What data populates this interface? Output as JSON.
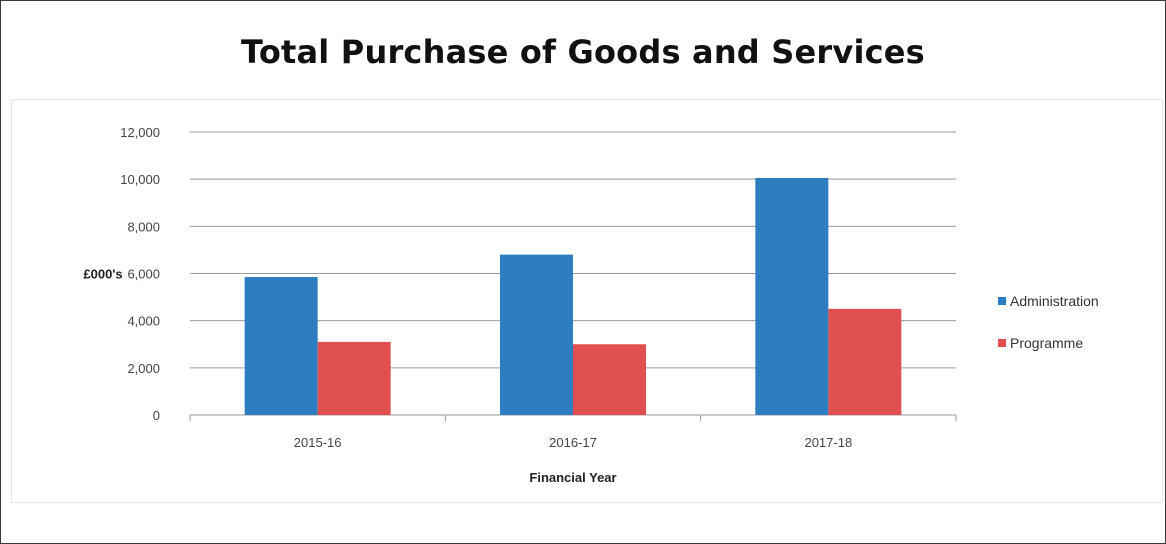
{
  "title": "Total Purchase of Goods and Services",
  "chart_data": {
    "type": "bar",
    "categories": [
      "2015-16",
      "2016-17",
      "2017-18"
    ],
    "series": [
      {
        "name": "Administration",
        "values": [
          5850,
          6800,
          10050
        ],
        "color": "#2e7dc1"
      },
      {
        "name": "Programme",
        "values": [
          3100,
          3000,
          4500
        ],
        "color": "#e05050"
      }
    ],
    "ylim": [
      0,
      12000
    ],
    "yticks": [
      0,
      2000,
      4000,
      6000,
      8000,
      10000,
      12000
    ],
    "ytick_labels": [
      "0",
      "2,000",
      "4,000",
      "6,000",
      "8,000",
      "10,000",
      "12,000"
    ],
    "xlabel": "Financial Year",
    "ylabel": "£000's",
    "grid": true,
    "legend": "right"
  }
}
